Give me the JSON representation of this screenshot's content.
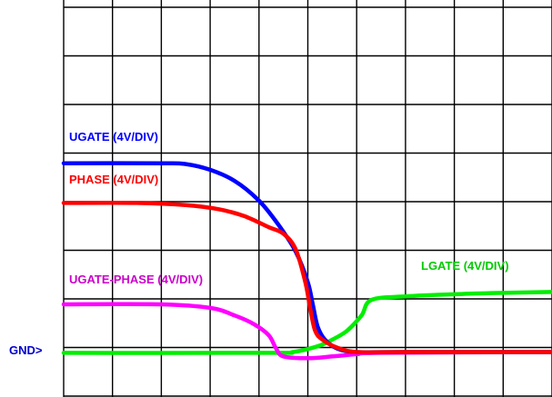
{
  "chart_data": {
    "type": "line",
    "title": "",
    "xlabel": "",
    "ylabel": "",
    "grid": true,
    "xlim": [
      0,
      10
    ],
    "ylim": [
      -1,
      8
    ],
    "grid_divisions": {
      "x": 10,
      "y": 8
    },
    "ground_marker": {
      "label": "GND>",
      "y": 0,
      "color": "#0000cc"
    },
    "series": [
      {
        "name": "UGATE (4V/DIV)",
        "color": "#0000ff",
        "label_color": "#0000ff",
        "points": [
          [
            0,
            4.3
          ],
          [
            2,
            4.3
          ],
          [
            2.5,
            4.28
          ],
          [
            3,
            4.15
          ],
          [
            3.5,
            3.9
          ],
          [
            4,
            3.45
          ],
          [
            4.4,
            2.9
          ],
          [
            4.75,
            2.3
          ],
          [
            5,
            1.6
          ],
          [
            5.1,
            1.1
          ],
          [
            5.2,
            0.6
          ],
          [
            5.35,
            0.3
          ],
          [
            5.6,
            0.1
          ],
          [
            6,
            0.02
          ],
          [
            7,
            0.02
          ],
          [
            10,
            0.02
          ]
        ]
      },
      {
        "name": "PHASE (4V/DIV)",
        "color": "#ff0000",
        "label_color": "#ff0000",
        "points": [
          [
            0,
            3.4
          ],
          [
            1.5,
            3.4
          ],
          [
            2.5,
            3.35
          ],
          [
            3.2,
            3.25
          ],
          [
            3.7,
            3.1
          ],
          [
            4.2,
            2.85
          ],
          [
            4.5,
            2.7
          ],
          [
            4.75,
            2.35
          ],
          [
            4.95,
            1.6
          ],
          [
            5.05,
            1.0
          ],
          [
            5.15,
            0.5
          ],
          [
            5.3,
            0.3
          ],
          [
            5.6,
            0.12
          ],
          [
            6,
            0.02
          ],
          [
            7,
            0.02
          ],
          [
            10,
            0.02
          ]
        ]
      },
      {
        "name": "UGATE-PHASE (4V/DIV)",
        "color": "#ff00ff",
        "label_color": "#cc00cc",
        "points": [
          [
            0,
            1.1
          ],
          [
            2,
            1.1
          ],
          [
            3,
            1.02
          ],
          [
            3.5,
            0.85
          ],
          [
            3.9,
            0.65
          ],
          [
            4.2,
            0.4
          ],
          [
            4.35,
            0.1
          ],
          [
            4.5,
            -0.08
          ],
          [
            5,
            -0.12
          ],
          [
            5.5,
            -0.08
          ],
          [
            6,
            -0.03
          ],
          [
            6.5,
            0.0
          ],
          [
            10,
            0.02
          ]
        ]
      },
      {
        "name": "LGATE (4V/DIV)",
        "color": "#00ee00",
        "label_color": "#00cc00",
        "points": [
          [
            0,
            0.0
          ],
          [
            4.2,
            0.0
          ],
          [
            4.7,
            0.02
          ],
          [
            5.2,
            0.15
          ],
          [
            5.5,
            0.3
          ],
          [
            5.8,
            0.5
          ],
          [
            6.1,
            0.85
          ],
          [
            6.3,
            1.2
          ],
          [
            7,
            1.28
          ],
          [
            8,
            1.33
          ],
          [
            9,
            1.36
          ],
          [
            10,
            1.38
          ]
        ]
      }
    ]
  }
}
